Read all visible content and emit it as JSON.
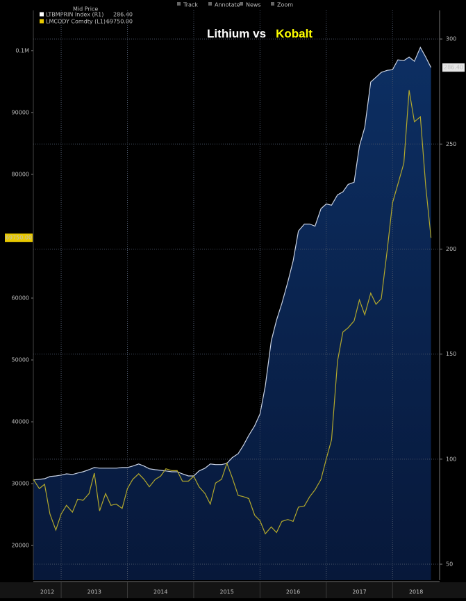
{
  "toolbar": [
    "Track",
    "Annotate",
    "News",
    "Zoom"
  ],
  "legend_header": "Mid Price",
  "chart_data": {
    "type": "line",
    "title": "Lithium vs",
    "title_highlight": "Kobalt",
    "x": [
      2012.58,
      2012.67,
      2012.75,
      2012.83,
      2012.92,
      2013.0,
      2013.08,
      2013.17,
      2013.25,
      2013.33,
      2013.42,
      2013.5,
      2013.58,
      2013.67,
      2013.75,
      2013.83,
      2013.92,
      2014.0,
      2014.08,
      2014.17,
      2014.25,
      2014.33,
      2014.42,
      2014.5,
      2014.58,
      2014.67,
      2014.75,
      2014.83,
      2014.92,
      2015.0,
      2015.08,
      2015.17,
      2015.25,
      2015.33,
      2015.42,
      2015.5,
      2015.58,
      2015.67,
      2015.75,
      2015.83,
      2015.92,
      2016.0,
      2016.08,
      2016.17,
      2016.25,
      2016.33,
      2016.42,
      2016.5,
      2016.58,
      2016.67,
      2016.75,
      2016.83,
      2016.92,
      2017.0,
      2017.08,
      2017.17,
      2017.25,
      2017.33,
      2017.42,
      2017.5,
      2017.58,
      2017.67,
      2017.75,
      2017.83,
      2017.92,
      2018.0,
      2018.08,
      2018.17,
      2018.25,
      2018.33,
      2018.42,
      2018.5,
      2018.58
    ],
    "xlim": [
      2012.58,
      2018.71
    ],
    "xticks": [
      2013,
      2014,
      2015,
      2016,
      2017,
      2018
    ],
    "year_labels": [
      "2012",
      "2013",
      "2014",
      "2015",
      "2016",
      "2017",
      "2018"
    ],
    "ylim": [
      14400,
      106500
    ],
    "yticks": [
      20000,
      30000,
      40000,
      50000,
      60000,
      80000,
      90000,
      {
        "value": 100000,
        "label": "0.1M"
      }
    ],
    "y2lim": [
      42.4,
      313.6
    ],
    "y2ticks": [
      50,
      100,
      150,
      200,
      250,
      300
    ],
    "grid": true,
    "series": [
      {
        "name": "LTBMPRIN Index (R1)",
        "axis": "y2",
        "color": "#c9d2e3",
        "fill": true,
        "last_value_label": "286.40",
        "values": [
          90.1,
          90.4,
          90.7,
          91.7,
          92.0,
          92.4,
          93.0,
          92.7,
          93.4,
          94.0,
          95.0,
          96.0,
          95.7,
          95.7,
          95.7,
          95.7,
          96.0,
          96.0,
          96.7,
          97.7,
          96.7,
          95.4,
          95.0,
          94.7,
          94.4,
          94.0,
          94.0,
          93.0,
          92.0,
          92.0,
          94.4,
          95.7,
          97.7,
          97.4,
          97.4,
          98.0,
          100.7,
          102.6,
          106.6,
          111.3,
          115.9,
          121.5,
          134.8,
          156.3,
          166.2,
          174.2,
          184.4,
          194.4,
          208.6,
          211.9,
          211.9,
          210.9,
          219.2,
          221.5,
          220.9,
          225.8,
          227.2,
          230.8,
          231.8,
          249.0,
          257.9,
          279.5,
          281.8,
          284.1,
          285.1,
          285.4,
          290.1,
          289.7,
          291.4,
          289.4,
          296.0,
          291.4,
          286.4
        ]
      },
      {
        "name": "LMCODY Comdty (L1)",
        "axis": "y",
        "color": "#b3a92c",
        "fill": false,
        "last_value_label": "69750.00",
        "values": [
          30700,
          29200,
          29900,
          25100,
          22500,
          25100,
          26500,
          25400,
          27500,
          27300,
          28400,
          31700,
          25600,
          28400,
          26500,
          26700,
          26000,
          29200,
          30700,
          31600,
          30700,
          29500,
          30700,
          31200,
          32400,
          32100,
          32100,
          30400,
          30400,
          31200,
          29500,
          28400,
          26700,
          30100,
          30700,
          33300,
          31000,
          28100,
          27900,
          27600,
          24900,
          24000,
          21900,
          23000,
          22100,
          23900,
          24200,
          23900,
          26200,
          26400,
          27900,
          29000,
          30700,
          34000,
          37100,
          49800,
          54500,
          55200,
          56300,
          59700,
          57300,
          60800,
          59000,
          59900,
          67800,
          75400,
          78400,
          81800,
          93600,
          88500,
          89300,
          78100,
          69750
        ]
      }
    ]
  }
}
